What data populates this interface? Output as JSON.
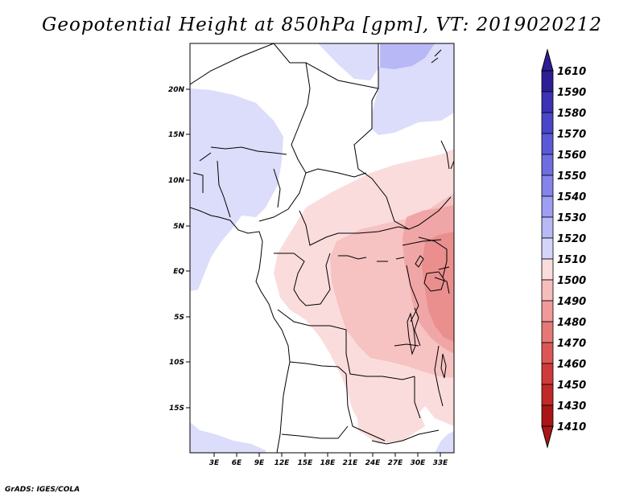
{
  "title": "Geopotential Height at 850hPa [gpm], VT: 2019020212",
  "credit": "GrADS: IGES/COLA",
  "map": {
    "region": "Central Africa",
    "lon_labels": [
      "3E",
      "6E",
      "9E",
      "12E",
      "15E",
      "18E",
      "21E",
      "24E",
      "27E",
      "30E",
      "33E"
    ],
    "lat_labels": [
      "20N",
      "15N",
      "10N",
      "5N",
      "EQ",
      "5S",
      "10S",
      "15S"
    ]
  },
  "colorbar": {
    "levels": [
      "1610",
      "1590",
      "1580",
      "1570",
      "1560",
      "1550",
      "1540",
      "1530",
      "1520",
      "1510",
      "1500",
      "1490",
      "1480",
      "1470",
      "1460",
      "1450",
      "1430",
      "1410"
    ],
    "colors": [
      "#2d1e96",
      "#3c32b4",
      "#4a46c8",
      "#5a5ad7",
      "#6e6ee1",
      "#8484eb",
      "#9e9ef2",
      "#b9b9f8",
      "#d5d5fb",
      "#ffffff",
      "#fbdcdc",
      "#f7bcbc",
      "#f09a9a",
      "#e67878",
      "#dc5656",
      "#d03a3a",
      "#c22828",
      "#aa1616"
    ]
  }
}
